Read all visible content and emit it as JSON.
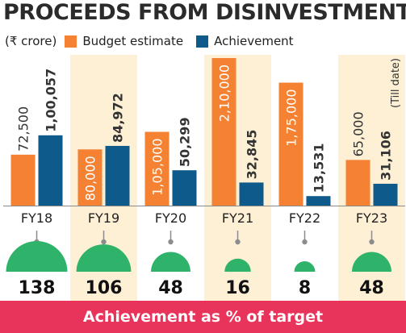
{
  "title": "PROCEEDS FROM DISINVESTMENT",
  "unit": "(₹ crore)",
  "footer": "Achievement as % of target",
  "colors": {
    "budget": "#f58233",
    "achievement": "#0e5a8a",
    "highlight_band": "#fdf0d5",
    "semicircle": "#2fb36b",
    "footer": "#e8345a"
  },
  "chart_data": {
    "type": "bar",
    "categories": [
      "FY18",
      "FY19",
      "FY20",
      "FY21",
      "FY22",
      "FY23"
    ],
    "series": [
      {
        "name": "Budget estimate",
        "values": [
          72500,
          80000,
          105000,
          210000,
          175000,
          65000
        ],
        "labels": [
          "72,500",
          "80,000",
          "1,05,000",
          "2,10,000",
          "1,75,000",
          "65,000"
        ]
      },
      {
        "name": "Achievement",
        "values": [
          100057,
          84972,
          50299,
          32845,
          13531,
          31106
        ],
        "labels": [
          "1,00,057",
          "84,972",
          "50,299",
          "32,845",
          "13,531",
          "31,106"
        ]
      }
    ],
    "highlighted_categories": [
      "FY19",
      "FY21",
      "FY23"
    ],
    "annotation": "(Till date)",
    "ylim": [
      0,
      210000
    ],
    "achievement_pct": [
      138,
      106,
      48,
      16,
      8,
      48
    ],
    "grid": false,
    "legend": "top-left"
  }
}
